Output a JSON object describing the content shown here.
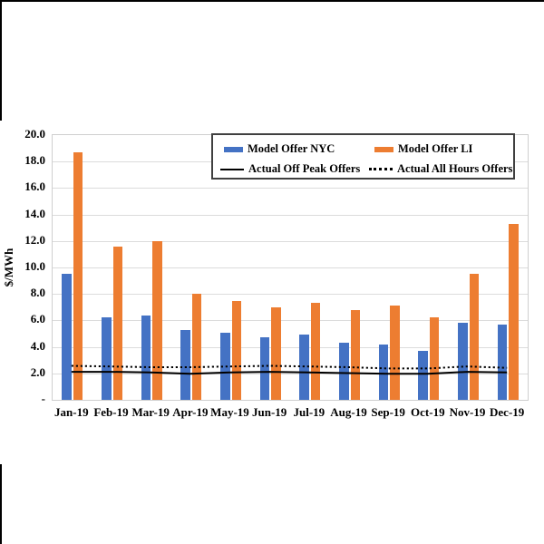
{
  "chart_data": {
    "type": "bar",
    "title": "",
    "ylabel": "$/MWh",
    "xlabel": "",
    "categories": [
      "Jan-19",
      "Feb-19",
      "Mar-19",
      "Apr-19",
      "May-19",
      "Jun-19",
      "Jul-19",
      "Aug-19",
      "Sep-19",
      "Oct-19",
      "Nov-19",
      "Dec-19"
    ],
    "y_tick_labels": [
      "-",
      "2.0",
      "4.0",
      "6.0",
      "8.0",
      "10.0",
      "12.0",
      "14.0",
      "16.0",
      "18.0",
      "20.0"
    ],
    "y_tick_values": [
      0,
      2,
      4,
      6,
      8,
      10,
      12,
      14,
      16,
      18,
      20
    ],
    "ylim": [
      0,
      20
    ],
    "grid": true,
    "legend_position": "top-inside",
    "series": [
      {
        "name": "Model Offer NYC",
        "kind": "bar",
        "color": "#4472C4",
        "values": [
          9.5,
          6.2,
          6.4,
          5.3,
          5.1,
          4.7,
          4.9,
          4.3,
          4.2,
          3.7,
          5.8,
          5.7
        ]
      },
      {
        "name": "Model Offer LI",
        "kind": "bar",
        "color": "#ED7D31",
        "values": [
          18.7,
          11.6,
          12.0,
          8.0,
          7.5,
          7.0,
          7.3,
          6.8,
          7.1,
          6.2,
          9.5,
          13.3
        ]
      },
      {
        "name": "Actual Off Peak Offers",
        "kind": "line",
        "line_style": "solid",
        "color": "#000000",
        "values": [
          2.05,
          2.05,
          2.0,
          1.9,
          2.0,
          2.05,
          2.0,
          1.95,
          1.9,
          1.9,
          2.05,
          2.0
        ]
      },
      {
        "name": "Actual All Hours Offers",
        "kind": "line",
        "line_style": "dotted",
        "color": "#000000",
        "values": [
          2.5,
          2.45,
          2.4,
          2.4,
          2.45,
          2.5,
          2.45,
          2.4,
          2.3,
          2.3,
          2.45,
          2.35
        ]
      }
    ]
  }
}
